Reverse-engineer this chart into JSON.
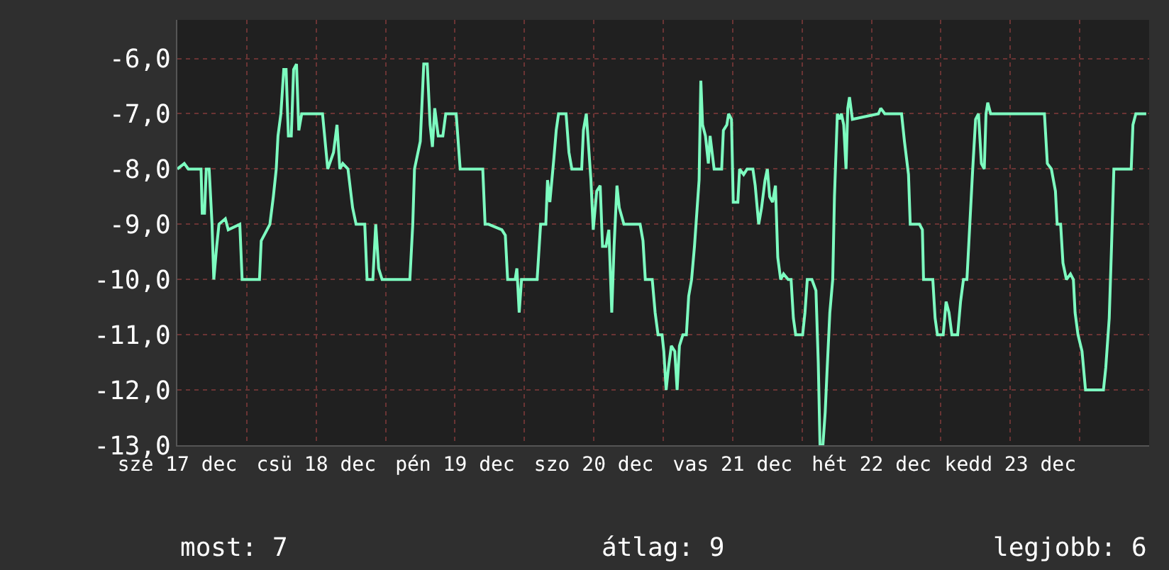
{
  "chart_data": {
    "type": "line",
    "x": [
      "--12-17T00:00",
      "--12-17T01:12",
      "--12-17T01:54",
      "--12-17T04:06",
      "--12-17T04:18",
      "--12-17T04:42",
      "--12-17T05:00",
      "--12-17T05:30",
      "--12-17T06:00",
      "--12-17T06:18",
      "--12-17T06:48",
      "--12-17T07:12",
      "--12-17T08:18",
      "--12-17T08:48",
      "--12-17T10:48",
      "--12-17T11:12",
      "--12-17T11:54",
      "--12-17T14:12",
      "--12-17T14:30",
      "--12-17T16:00",
      "--12-17T16:36",
      "--12-17T17:06",
      "--12-17T17:24",
      "--12-17T17:54",
      "--12-17T18:24",
      "--12-17T18:48",
      "--12-17T19:12",
      "--12-17T19:42",
      "--12-17T20:06",
      "--12-17T20:36",
      "--12-17T21:00",
      "--12-17T21:30",
      "--12-18T01:06",
      "--12-18T02:00",
      "--12-18T03:00",
      "--12-18T03:36",
      "--12-18T04:06",
      "--12-18T04:36",
      "--12-18T05:30",
      "--12-18T06:18",
      "--12-18T06:54",
      "--12-18T08:24",
      "--12-18T08:48",
      "--12-18T09:48",
      "--12-18T10:18",
      "--12-18T10:48",
      "--12-18T11:24",
      "--12-18T16:12",
      "--12-18T16:42",
      "--12-18T17:00",
      "--12-18T17:24",
      "--12-18T18:00",
      "--12-18T18:36",
      "--12-18T19:12",
      "--12-18T19:42",
      "--12-18T20:06",
      "--12-18T20:30",
      "--12-18T21:06",
      "--12-18T21:54",
      "--12-18T22:24",
      "--12-19T00:12",
      "--12-19T00:54",
      "--12-19T04:48",
      "--12-19T05:12",
      "--12-19T05:48",
      "--12-19T08:06",
      "--12-19T08:42",
      "--12-19T09:06",
      "--12-19T10:24",
      "--12-19T10:42",
      "--12-19T11:06",
      "--12-19T11:30",
      "--12-19T14:12",
      "--12-19T14:48",
      "--12-19T15:42",
      "--12-19T16:00",
      "--12-19T16:24",
      "--12-19T17:06",
      "--12-19T17:30",
      "--12-19T17:54",
      "--12-19T19:12",
      "--12-19T19:42",
      "--12-19T20:12",
      "--12-19T21:54",
      "--12-19T22:12",
      "--12-19T22:42",
      "--12-19T23:30",
      "--12-19T23:54",
      "--12-20T00:30",
      "--12-20T01:06",
      "--12-20T01:30",
      "--12-20T02:06",
      "--12-20T02:36",
      "--12-20T03:06",
      "--12-20T03:30",
      "--12-20T04:00",
      "--12-20T04:24",
      "--12-20T05:12",
      "--12-20T08:00",
      "--12-20T08:30",
      "--12-20T08:54",
      "--12-20T10:06",
      "--12-20T10:36",
      "--12-20T11:06",
      "--12-20T11:48",
      "--12-20T12:06",
      "--12-20T12:30",
      "--12-20T12:54",
      "--12-20T13:24",
      "--12-20T14:00",
      "--12-20T14:24",
      "--12-20T14:48",
      "--12-20T15:24",
      "--12-20T16:00",
      "--12-20T16:24",
      "--12-20T16:54",
      "--12-20T17:24",
      "--12-20T17:48",
      "--12-20T18:12",
      "--12-20T18:30",
      "--12-20T18:48",
      "--12-20T19:18",
      "--12-20T19:48",
      "--12-20T20:06",
      "--12-20T20:48",
      "--12-20T22:06",
      "--12-20T22:24",
      "--12-20T23:00",
      "--12-20T23:18",
      "--12-20T23:48",
      "--12-21T00:06",
      "--12-21T00:54",
      "--12-21T01:12",
      "--12-21T01:54",
      "--12-21T02:30",
      "--12-21T03:30",
      "--12-21T03:54",
      "--12-21T04:30",
      "--12-21T05:00",
      "--12-21T05:36",
      "--12-21T06:00",
      "--12-21T06:24",
      "--12-21T06:54",
      "--12-21T07:24",
      "--12-21T07:48",
      "--12-21T08:18",
      "--12-21T08:48",
      "--12-21T09:36",
      "--12-21T10:06",
      "--12-21T10:30",
      "--12-21T10:54",
      "--12-21T12:06",
      "--12-21T12:30",
      "--12-21T12:54",
      "--12-21T13:42",
      "--12-21T14:24",
      "--12-21T14:48",
      "--12-21T15:06",
      "--12-21T15:36",
      "--12-21T16:00",
      "--12-21T16:18",
      "--12-21T16:48",
      "--12-21T17:18",
      "--12-21T17:36",
      "--12-21T18:06",
      "--12-21T18:30",
      "--12-21T18:48",
      "--12-21T19:12",
      "--12-21T19:36",
      "--12-21T19:54",
      "--12-21T20:12",
      "--12-21T20:42",
      "--12-22T01:12",
      "--12-22T01:36",
      "--12-22T02:18",
      "--12-22T05:12",
      "--12-22T05:42",
      "--12-22T06:24",
      "--12-22T06:42",
      "--12-22T08:18",
      "--12-22T08:48",
      "--12-22T09:00",
      "--12-22T10:36",
      "--12-22T11:00",
      "--12-22T11:24",
      "--12-22T12:24",
      "--12-22T12:54",
      "--12-22T13:24",
      "--12-22T13:54",
      "--12-22T14:54",
      "--12-22T15:24",
      "--12-22T15:54",
      "--12-22T16:30",
      "--12-22T17:00",
      "--12-22T17:30",
      "--12-22T18:00",
      "--12-22T18:30",
      "--12-22T19:00",
      "--12-22T19:30",
      "--12-22T19:48",
      "--12-22T20:06",
      "--12-22T20:36",
      "--12-23T05:54",
      "--12-23T06:24",
      "--12-23T07:06",
      "--12-23T07:48",
      "--12-23T08:06",
      "--12-23T08:42",
      "--12-23T09:06",
      "--12-23T09:42",
      "--12-23T10:24",
      "--12-23T10:54",
      "--12-23T11:12",
      "--12-23T11:42",
      "--12-23T12:24",
      "--12-23T13:00",
      "--12-23T16:06",
      "--12-23T16:30",
      "--12-23T17:06",
      "--12-23T17:30",
      "--12-23T17:54",
      "--12-23T20:54",
      "--12-23T21:12",
      "--12-23T21:42",
      "--12-23T23:30"
    ],
    "series": [
      {
        "color": "#7dfcc0",
        "values": [
          -8,
          -7.9,
          -8,
          -8,
          -8.8,
          -8.8,
          -8,
          -8,
          -9,
          -10,
          -9.4,
          -9,
          -8.9,
          -9.1,
          -9,
          -10,
          -10,
          -10,
          -9.3,
          -9,
          -8.5,
          -8,
          -7.4,
          -7,
          -6.2,
          -6.2,
          -7.4,
          -7.4,
          -6.2,
          -6.1,
          -7.3,
          -7,
          -7,
          -8,
          -7.7,
          -7.2,
          -8,
          -7.9,
          -8,
          -8.7,
          -9,
          -9,
          -10,
          -10,
          -9,
          -9.8,
          -10,
          -10,
          -9,
          -8,
          -7.8,
          -7.5,
          -6.1,
          -6.1,
          -7.2,
          -7.6,
          -6.9,
          -7.4,
          -7.4,
          -7,
          -7,
          -8,
          -8,
          -9,
          -9,
          -9.1,
          -9.2,
          -10,
          -10,
          -9.8,
          -10.6,
          -10,
          -10,
          -9,
          -9,
          -8.2,
          -8.6,
          -7.8,
          -7.3,
          -7,
          -7,
          -7.7,
          -8,
          -8,
          -7.3,
          -7,
          -8.2,
          -9.1,
          -8.4,
          -8.3,
          -9.4,
          -9.4,
          -9.1,
          -10.6,
          -9.4,
          -8.3,
          -8.7,
          -9,
          -9,
          -9.3,
          -10,
          -10,
          -10.6,
          -11,
          -11,
          -11.3,
          -12,
          -11.6,
          -11.2,
          -11.3,
          -12,
          -11.2,
          -11,
          -11,
          -10.3,
          -10,
          -9.4,
          -8.8,
          -8.2,
          -6.4,
          -7.2,
          -7.4,
          -7.9,
          -7.4,
          -8,
          -8,
          -7.3,
          -7.2,
          -7,
          -7.1,
          -8.6,
          -8.6,
          -8,
          -8.1,
          -8,
          -8,
          -8.3,
          -9,
          -8.7,
          -8.2,
          -8,
          -8.5,
          -8.6,
          -8.3,
          -9.6,
          -10,
          -9.9,
          -10,
          -10,
          -10.7,
          -11,
          -11,
          -10.6,
          -10,
          -10,
          -10.2,
          -11.5,
          -13,
          -13,
          -12.4,
          -11.7,
          -10.6,
          -10,
          -8.5,
          -7,
          -7.1,
          -7,
          -7.2,
          -8,
          -6.9,
          -6.7,
          -7.1,
          -7,
          -6.9,
          -7,
          -7,
          -7.5,
          -8.1,
          -9,
          -9,
          -9.1,
          -10,
          -10,
          -10.7,
          -11,
          -11,
          -10.4,
          -10.6,
          -11,
          -11,
          -10.4,
          -10,
          -10,
          -9,
          -8,
          -7.1,
          -7,
          -7.9,
          -8,
          -7,
          -6.8,
          -7,
          -7,
          -7.9,
          -8,
          -8.4,
          -9,
          -9,
          -9.7,
          -10,
          -9.9,
          -10,
          -10.6,
          -11,
          -11.3,
          -12,
          -12,
          -11.6,
          -10.7,
          -9.4,
          -8,
          -8,
          -7.2,
          -7,
          -7
        ]
      }
    ],
    "xlim": [
      "--12-17T00:00",
      "--12-24T00:00"
    ],
    "xticks": [
      {
        "value": "--12-17",
        "label": "sze 17 dec"
      },
      {
        "value": "--12-17T12:00",
        "label": null
      },
      {
        "value": "--12-18",
        "label": "csü 18 dec"
      },
      {
        "value": "--12-18T12:00",
        "label": null
      },
      {
        "value": "--12-19",
        "label": "pén 19 dec"
      },
      {
        "value": "--12-19T12:00",
        "label": null
      },
      {
        "value": "--12-20",
        "label": "szo 20 dec"
      },
      {
        "value": "--12-20T12:00",
        "label": null
      },
      {
        "value": "--12-21",
        "label": "vas 21 dec"
      },
      {
        "value": "--12-21T12:00",
        "label": null
      },
      {
        "value": "--12-22",
        "label": "hét 22 dec"
      },
      {
        "value": "--12-22T12:00",
        "label": null
      },
      {
        "value": "--12-23",
        "label": "kedd 23 dec"
      },
      {
        "value": "--12-23T12:00",
        "label": null
      }
    ],
    "ylim": [
      -13,
      -5.3
    ],
    "yticks": [
      {
        "value": -6,
        "label": "-6,0"
      },
      {
        "value": -7,
        "label": "-7,0"
      },
      {
        "value": -8,
        "label": "-8,0"
      },
      {
        "value": -9,
        "label": "-9,0"
      },
      {
        "value": -10,
        "label": "-10,0"
      },
      {
        "value": -11,
        "label": "-11,0"
      },
      {
        "value": -12,
        "label": "-12,0"
      },
      {
        "value": -13,
        "label": "-13,0"
      }
    ],
    "grid": true,
    "annotations": [
      "most: 7",
      "átlag: 9",
      "legjobb: 6"
    ]
  }
}
